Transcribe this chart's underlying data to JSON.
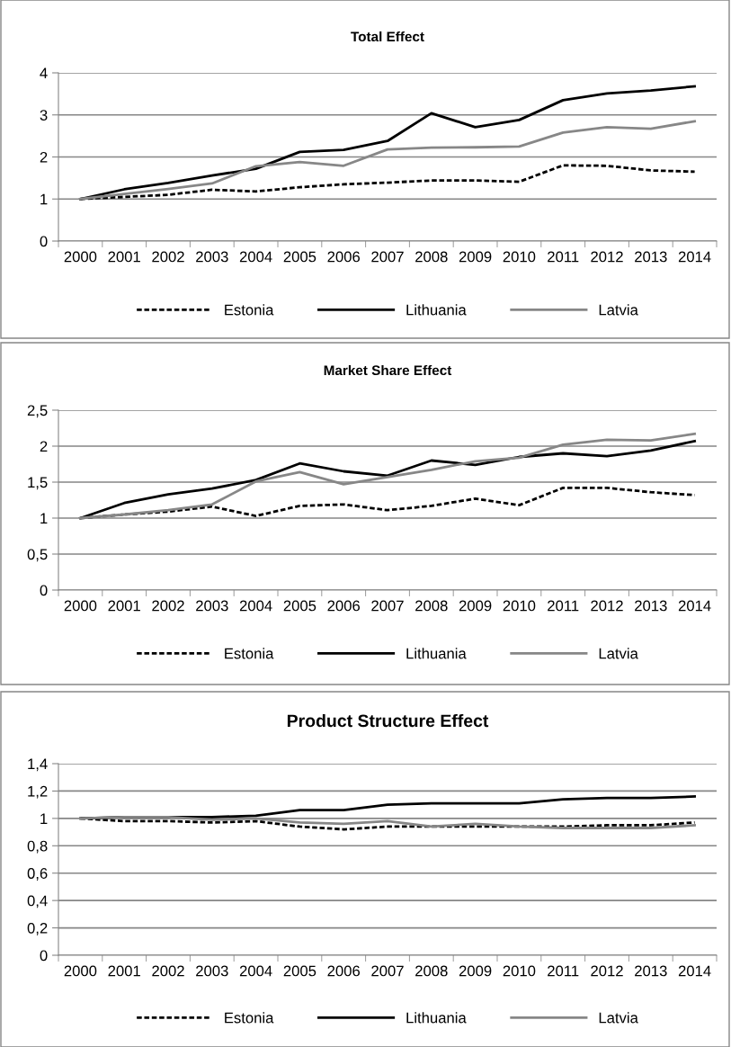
{
  "chart_data": [
    {
      "type": "line",
      "title": "Total Effect",
      "categories": [
        "2000",
        "2001",
        "2002",
        "2003",
        "2004",
        "2005",
        "2006",
        "2007",
        "2008",
        "2009",
        "2010",
        "2011",
        "2012",
        "2013",
        "2014"
      ],
      "series": [
        {
          "name": "Estonia",
          "color": "#000000",
          "line_style": "dashed",
          "values": [
            1,
            1.05,
            1.1,
            1.22,
            1.18,
            1.28,
            1.35,
            1.39,
            1.44,
            1.44,
            1.41,
            1.8,
            1.79,
            1.68,
            1.65
          ]
        },
        {
          "name": "Lithuania",
          "color": "#000000",
          "line_style": "solid",
          "values": [
            1,
            1.23,
            1.38,
            1.56,
            1.72,
            2.12,
            2.17,
            2.38,
            3.04,
            2.71,
            2.88,
            3.35,
            3.51,
            3.58,
            3.68
          ]
        },
        {
          "name": "Latvia",
          "color": "#878787",
          "line_style": "solid",
          "values": [
            1,
            1.12,
            1.24,
            1.37,
            1.78,
            1.88,
            1.79,
            2.18,
            2.22,
            2.23,
            2.25,
            2.58,
            2.71,
            2.67,
            2.85
          ]
        }
      ],
      "ylim": [
        0,
        4
      ],
      "yticks": [
        0,
        1,
        2,
        3,
        4
      ],
      "grid": "y",
      "legend": "bottom",
      "marker": "none"
    },
    {
      "type": "line",
      "title": "Market Share Effect",
      "categories": [
        "2000",
        "2001",
        "2002",
        "2003",
        "2004",
        "2005",
        "2006",
        "2007",
        "2008",
        "2009",
        "2010",
        "2011",
        "2012",
        "2013",
        "2014"
      ],
      "series": [
        {
          "name": "Estonia",
          "color": "#000000",
          "line_style": "dashed",
          "values": [
            1,
            1.05,
            1.09,
            1.16,
            1.03,
            1.17,
            1.19,
            1.11,
            1.17,
            1.27,
            1.18,
            1.42,
            1.42,
            1.36,
            1.32
          ]
        },
        {
          "name": "Lithuania",
          "color": "#000000",
          "line_style": "solid",
          "values": [
            1,
            1.21,
            1.33,
            1.41,
            1.53,
            1.76,
            1.65,
            1.59,
            1.8,
            1.74,
            1.85,
            1.9,
            1.86,
            1.94,
            2.07
          ]
        },
        {
          "name": "Latvia",
          "color": "#878787",
          "line_style": "solid",
          "values": [
            1,
            1.05,
            1.11,
            1.19,
            1.51,
            1.64,
            1.47,
            1.57,
            1.67,
            1.79,
            1.84,
            2.02,
            2.09,
            2.08,
            2.17
          ]
        }
      ],
      "ylim": [
        0,
        2.5
      ],
      "yticks": [
        0,
        {
          "value": 0.5,
          "label": "0,5"
        },
        1,
        {
          "value": 1.5,
          "label": "1,5"
        },
        2,
        {
          "value": 2.5,
          "label": "2,5"
        }
      ],
      "grid": "y",
      "legend": "bottom",
      "marker": "none"
    },
    {
      "type": "line",
      "title": "Product Structure Effect",
      "categories": [
        "2000",
        "2001",
        "2002",
        "2003",
        "2004",
        "2005",
        "2006",
        "2007",
        "2008",
        "2009",
        "2010",
        "2011",
        "2012",
        "2013",
        "2014"
      ],
      "series": [
        {
          "name": "Estonia",
          "color": "#000000",
          "line_style": "dashed",
          "values": [
            1,
            0.98,
            0.98,
            0.97,
            0.98,
            0.94,
            0.92,
            0.94,
            0.94,
            0.94,
            0.94,
            0.94,
            0.95,
            0.95,
            0.97
          ]
        },
        {
          "name": "Lithuania",
          "color": "#000000",
          "line_style": "solid",
          "values": [
            1,
            1.01,
            1.01,
            1.01,
            1.02,
            1.06,
            1.06,
            1.1,
            1.11,
            1.11,
            1.11,
            1.14,
            1.15,
            1.15,
            1.16
          ]
        },
        {
          "name": "Latvia",
          "color": "#878787",
          "line_style": "solid",
          "values": [
            1,
            1.01,
            1.01,
            0.99,
            1.0,
            0.97,
            0.96,
            0.98,
            0.94,
            0.96,
            0.94,
            0.93,
            0.93,
            0.93,
            0.95
          ]
        }
      ],
      "ylim": [
        0,
        1.4
      ],
      "yticks": [
        0,
        {
          "value": 0.2,
          "label": "0,2"
        },
        {
          "value": 0.4,
          "label": "0,4"
        },
        {
          "value": 0.6,
          "label": "0,6"
        },
        {
          "value": 0.8,
          "label": "0,8"
        },
        1,
        {
          "value": 1.2,
          "label": "1,2"
        },
        {
          "value": 1.4,
          "label": "1,4"
        }
      ],
      "grid": "y",
      "legend": "bottom",
      "marker": "none"
    }
  ]
}
